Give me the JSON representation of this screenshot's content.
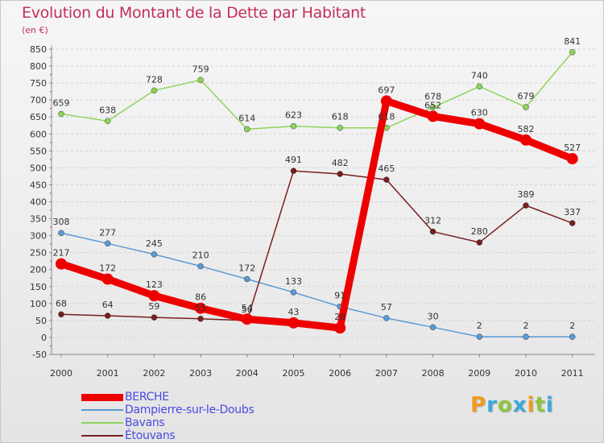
{
  "header": {
    "title": "Evolution du Montant de la Dette par Habitant",
    "unit": "(en €)"
  },
  "logo": {
    "text": "Proxiti",
    "letters": [
      "P",
      "r",
      "o",
      "x",
      "i",
      "t",
      "i"
    ],
    "colors": [
      "#f29a1d",
      "#3aa8d8",
      "#8cc63f",
      "#3aa8d8",
      "#f29a1d",
      "#8cc63f",
      "#3aa8d8"
    ]
  },
  "chart_data": {
    "type": "line",
    "title": "Evolution du Montant de la Dette par Habitant",
    "ylabel": "(en €)",
    "xlabel": "",
    "x": [
      "2000",
      "2001",
      "2002",
      "2003",
      "2004",
      "2005",
      "2006",
      "2007",
      "2008",
      "2009",
      "2010",
      "2011"
    ],
    "ylim": [
      -50,
      850
    ],
    "yticks": [
      -50,
      0,
      50,
      100,
      150,
      200,
      250,
      300,
      350,
      400,
      450,
      500,
      550,
      600,
      650,
      700,
      750,
      800,
      850
    ],
    "grid": "horizontal",
    "legend_position": "bottom-left",
    "series": [
      {
        "name": "BERCHE",
        "color": "#ee0000",
        "emphasis": true,
        "values": [
          217,
          172,
          123,
          86,
          54,
          43,
          28,
          697,
          652,
          630,
          582,
          527
        ],
        "labels": [
          "217",
          "172",
          "123",
          "86",
          "54",
          "43",
          "28",
          "697",
          "652",
          "630",
          "582",
          "527"
        ]
      },
      {
        "name": "Dampierre-sur-le-Doubs",
        "color": "#5b9bd5",
        "emphasis": false,
        "values": [
          308,
          277,
          245,
          210,
          172,
          133,
          91,
          57,
          30,
          2,
          2,
          2
        ],
        "labels": [
          "308",
          "277",
          "245",
          "210",
          "172",
          "133",
          "91",
          "57",
          "30",
          "2",
          "2",
          "2"
        ]
      },
      {
        "name": "Bavans",
        "color": "#8fd45a",
        "emphasis": false,
        "values": [
          659,
          638,
          728,
          759,
          614,
          623,
          618,
          618,
          678,
          740,
          679,
          841
        ],
        "labels": [
          "659",
          "638",
          "728",
          "759",
          "614",
          "623",
          "618",
          "618",
          "678",
          "740",
          "679",
          "841"
        ]
      },
      {
        "name": "Étouvans",
        "color": "#7a1f1f",
        "emphasis": false,
        "values": [
          68,
          64,
          59,
          55,
          50,
          491,
          482,
          465,
          312,
          280,
          389,
          337
        ],
        "labels": [
          "68",
          "64",
          "59",
          "55",
          "50",
          "491",
          "482",
          "465",
          "312",
          "280",
          "389",
          "337"
        ]
      }
    ]
  }
}
